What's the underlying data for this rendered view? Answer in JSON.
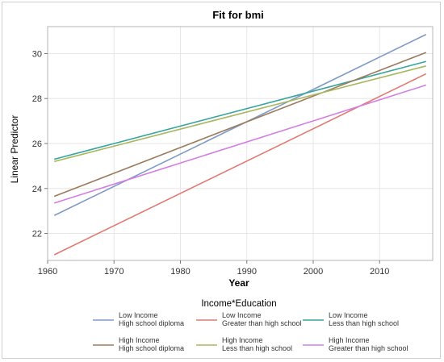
{
  "chart_data": {
    "type": "line",
    "title": "Fit for bmi",
    "xlabel": "Year",
    "ylabel": "Linear Predictor",
    "xlim": [
      1960,
      2018
    ],
    "ylim": [
      20.8,
      31.2
    ],
    "xticks": [
      1960,
      1970,
      1980,
      1990,
      2000,
      2010
    ],
    "yticks": [
      22,
      24,
      26,
      28,
      30
    ],
    "grid": true,
    "legend": {
      "title": "Income*Education",
      "placement": "bottom"
    },
    "series": [
      {
        "name": "Low Income\nHigh school diploma",
        "line1": "Low Income",
        "line2": "High school diploma",
        "color": "#7f9bc5",
        "x": [
          1961,
          2017
        ],
        "y": [
          22.8,
          30.85
        ]
      },
      {
        "name": "Low Income\nGreater than high school",
        "line1": "Low Income",
        "line2": "Greater than high school",
        "color": "#e07a72",
        "x": [
          1961,
          2017
        ],
        "y": [
          21.05,
          29.1
        ]
      },
      {
        "name": "Low Income\nLess than high school",
        "line1": "Low Income",
        "line2": "Less than high school",
        "color": "#36a69d",
        "x": [
          1961,
          2017
        ],
        "y": [
          25.3,
          29.65
        ]
      },
      {
        "name": "High Income\nHigh school diploma",
        "line1": "High Income",
        "line2": "High school diploma",
        "color": "#9c7b5d",
        "x": [
          1961,
          2017
        ],
        "y": [
          23.65,
          30.05
        ]
      },
      {
        "name": "High Income\nLess than high school",
        "line1": "High Income",
        "line2": "Less than high school",
        "color": "#a9b860",
        "x": [
          1961,
          2017
        ],
        "y": [
          25.2,
          29.45
        ]
      },
      {
        "name": "High Income\nGreater than high school",
        "line1": "High Income",
        "line2": "Greater than high school",
        "color": "#d37ee3",
        "x": [
          1961,
          2017
        ],
        "y": [
          23.35,
          28.6
        ]
      }
    ]
  }
}
